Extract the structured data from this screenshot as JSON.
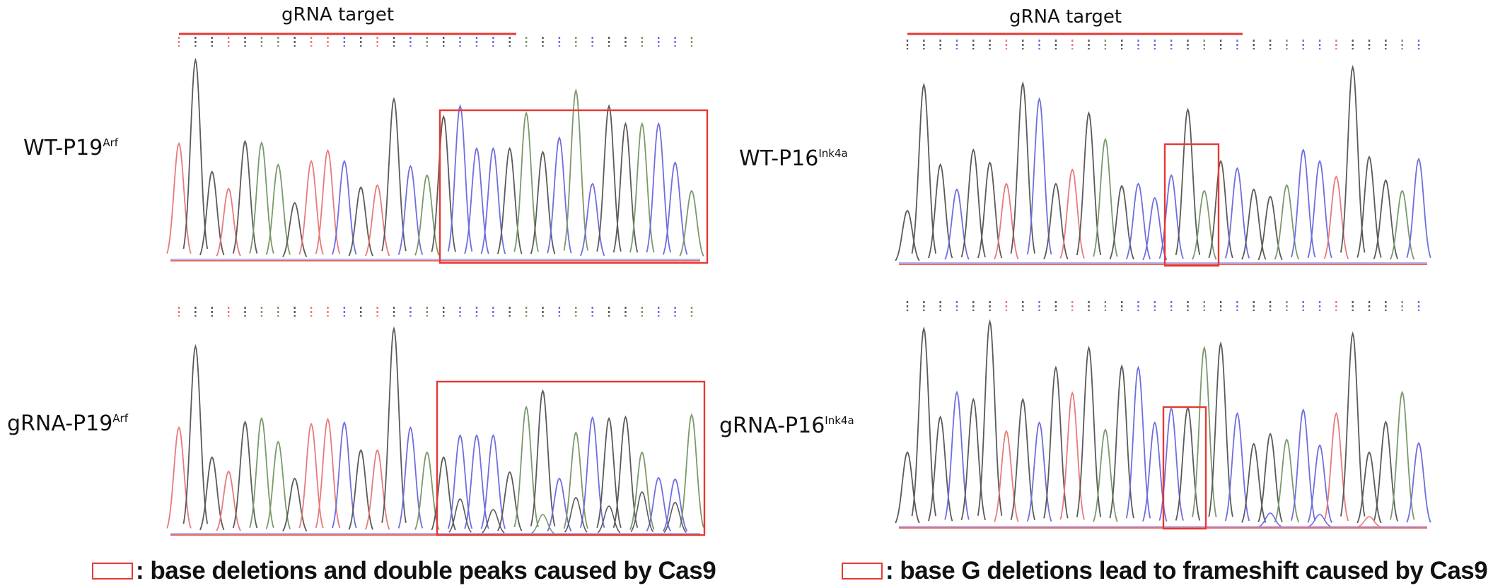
{
  "panels": [
    {
      "sample": "WT-P19",
      "superscript": "Arf",
      "gRNA_label": "gRNA target"
    },
    {
      "sample": "gRNA-P19",
      "superscript": "Arf"
    },
    {
      "sample": "WT-P16",
      "superscript": "Ink4a",
      "gRNA_label": "gRNA target"
    },
    {
      "sample": "gRNA-P16",
      "superscript": "Ink4a"
    }
  ],
  "legend": {
    "left": ": base deletions and double peaks caused by Cas9",
    "right": ": base G deletions lead to frameshift caused by Cas9"
  },
  "colors": {
    "trace_black": "#5a5a5a",
    "trace_green": "#7a9a6a",
    "trace_blue": "#6e6ee0",
    "trace_red": "#e87a7a",
    "highlight_box": "#e53935",
    "baseline_red": "#e53935"
  }
}
